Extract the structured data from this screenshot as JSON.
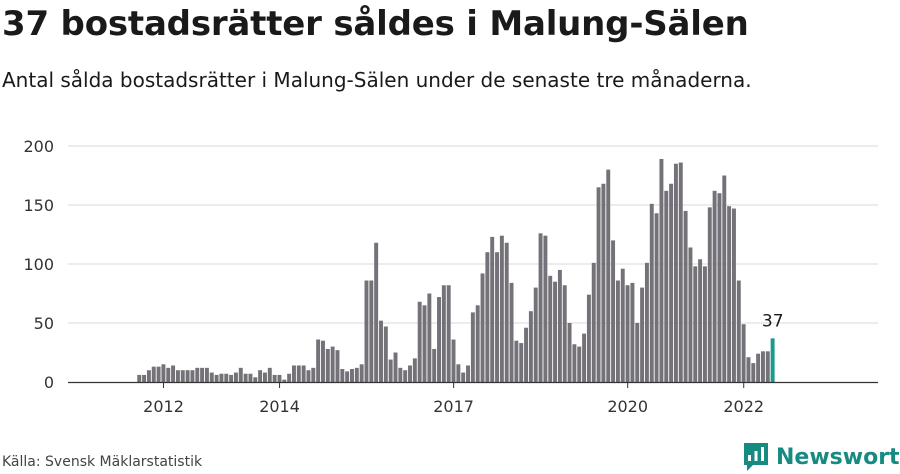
{
  "title": "37 bostadsrätter såldes i Malung-Sälen",
  "subtitle": "Antal sålda bostadsrätter i Malung-Sälen under de senaste tre månaderna.",
  "source": "Källa: Svensk Mäklarstatistik",
  "brand": {
    "name": "Newsworthy",
    "icon": "newsworthy-logo-icon",
    "color": "#178a82"
  },
  "colors": {
    "bar": "#747278",
    "highlight": "#1a9a8f",
    "grid": "#d9d9d9",
    "axis": "#333333"
  },
  "chart_data": {
    "type": "bar",
    "unit": "months",
    "start": "2011-01",
    "ylim": [
      0,
      200
    ],
    "yticks": [
      0,
      50,
      100,
      150,
      200
    ],
    "xtick_labels": [
      {
        "label": "2012",
        "index": 12
      },
      {
        "label": "2014",
        "index": 36
      },
      {
        "label": "2017",
        "index": 72
      },
      {
        "label": "2020",
        "index": 108
      },
      {
        "label": "2022",
        "index": 132
      }
    ],
    "grid": true,
    "highlight_last": true,
    "highlight_label": "37",
    "values": [
      0,
      0,
      0,
      0,
      0,
      0,
      0,
      6,
      6,
      10,
      13,
      13,
      15,
      12,
      14,
      10,
      10,
      10,
      10,
      12,
      12,
      12,
      8,
      6,
      7,
      7,
      6,
      8,
      12,
      7,
      7,
      4,
      10,
      8,
      12,
      6,
      6,
      2,
      7,
      14,
      14,
      14,
      10,
      12,
      36,
      35,
      28,
      30,
      27,
      11,
      9,
      11,
      12,
      15,
      86,
      86,
      118,
      52,
      47,
      19,
      25,
      12,
      10,
      14,
      20,
      68,
      65,
      75,
      28,
      72,
      82,
      82,
      36,
      15,
      8,
      14,
      59,
      65,
      92,
      110,
      123,
      110,
      124,
      118,
      84,
      35,
      33,
      46,
      60,
      80,
      126,
      124,
      90,
      85,
      95,
      82,
      50,
      32,
      30,
      41,
      74,
      101,
      165,
      168,
      180,
      120,
      86,
      96,
      82,
      84,
      50,
      80,
      101,
      151,
      143,
      189,
      162,
      168,
      185,
      186,
      145,
      114,
      98,
      104,
      98,
      148,
      162,
      160,
      175,
      149,
      147,
      86,
      49,
      21,
      16,
      24,
      26,
      26,
      37
    ]
  }
}
